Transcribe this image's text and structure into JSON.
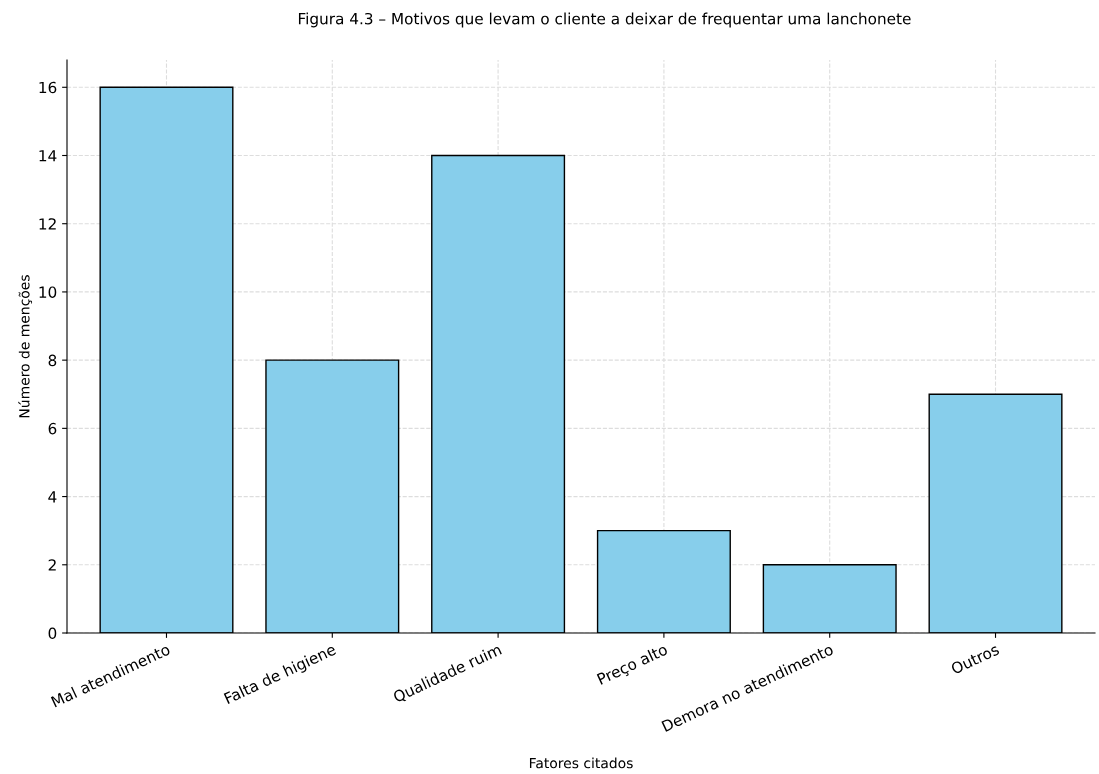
{
  "chart_data": {
    "type": "bar",
    "title": "Figura 4.3 – Motivos que levam o cliente a deixar de frequentar uma lanchonete",
    "xlabel": "Fatores citados",
    "ylabel": "Número de menções",
    "categories": [
      "Mal atendimento",
      "Falta de higiene",
      "Qualidade ruim",
      "Preço alto",
      "Demora no atendimento",
      "Outros"
    ],
    "values": [
      16,
      8,
      14,
      3,
      2,
      7
    ],
    "color": "#87ceeb",
    "ylim": [
      0,
      16.8
    ],
    "yticks": [
      0,
      2,
      4,
      6,
      8,
      10,
      12,
      14,
      16
    ],
    "grid": true
  }
}
